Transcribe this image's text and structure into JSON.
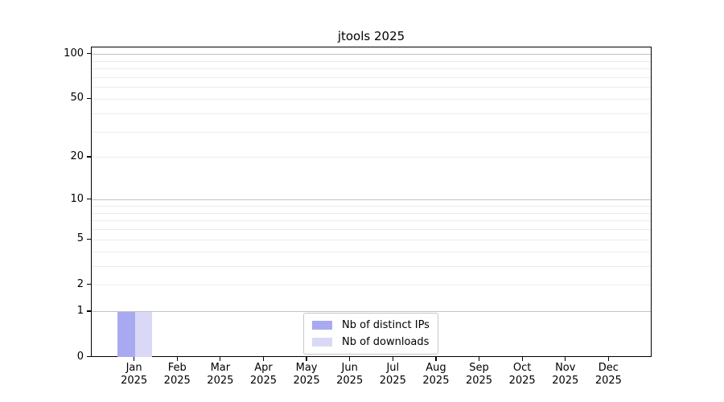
{
  "chart_data": {
    "type": "bar",
    "title": "jtools 2025",
    "scale": "log1p (y position proportional to log10(value+1), 0 at baseline)",
    "categories": [
      {
        "month": "Jan",
        "year": "2025"
      },
      {
        "month": "Feb",
        "year": "2025"
      },
      {
        "month": "Mar",
        "year": "2025"
      },
      {
        "month": "Apr",
        "year": "2025"
      },
      {
        "month": "May",
        "year": "2025"
      },
      {
        "month": "Jun",
        "year": "2025"
      },
      {
        "month": "Jul",
        "year": "2025"
      },
      {
        "month": "Aug",
        "year": "2025"
      },
      {
        "month": "Sep",
        "year": "2025"
      },
      {
        "month": "Oct",
        "year": "2025"
      },
      {
        "month": "Nov",
        "year": "2025"
      },
      {
        "month": "Dec",
        "year": "2025"
      }
    ],
    "series": [
      {
        "name": "Nb of distinct IPs",
        "color": "#a9a9f1",
        "values": [
          1,
          0,
          0,
          0,
          0,
          0,
          0,
          0,
          0,
          0,
          0,
          0
        ]
      },
      {
        "name": "Nb of downloads",
        "color": "#d9d9f7",
        "values": [
          1,
          0,
          0,
          0,
          0,
          0,
          0,
          0,
          0,
          0,
          0,
          0
        ]
      }
    ],
    "xlabel": "",
    "ylabel": "",
    "y_ticks": [
      100,
      50,
      20,
      10,
      5,
      2,
      1,
      0
    ],
    "ylim": [
      0,
      112
    ],
    "grid": {
      "major": [
        1,
        10,
        100
      ],
      "minor": [
        2,
        3,
        4,
        5,
        6,
        7,
        8,
        9,
        20,
        30,
        40,
        50,
        60,
        70,
        80,
        90
      ]
    },
    "legend": {
      "position": "lower center"
    }
  }
}
